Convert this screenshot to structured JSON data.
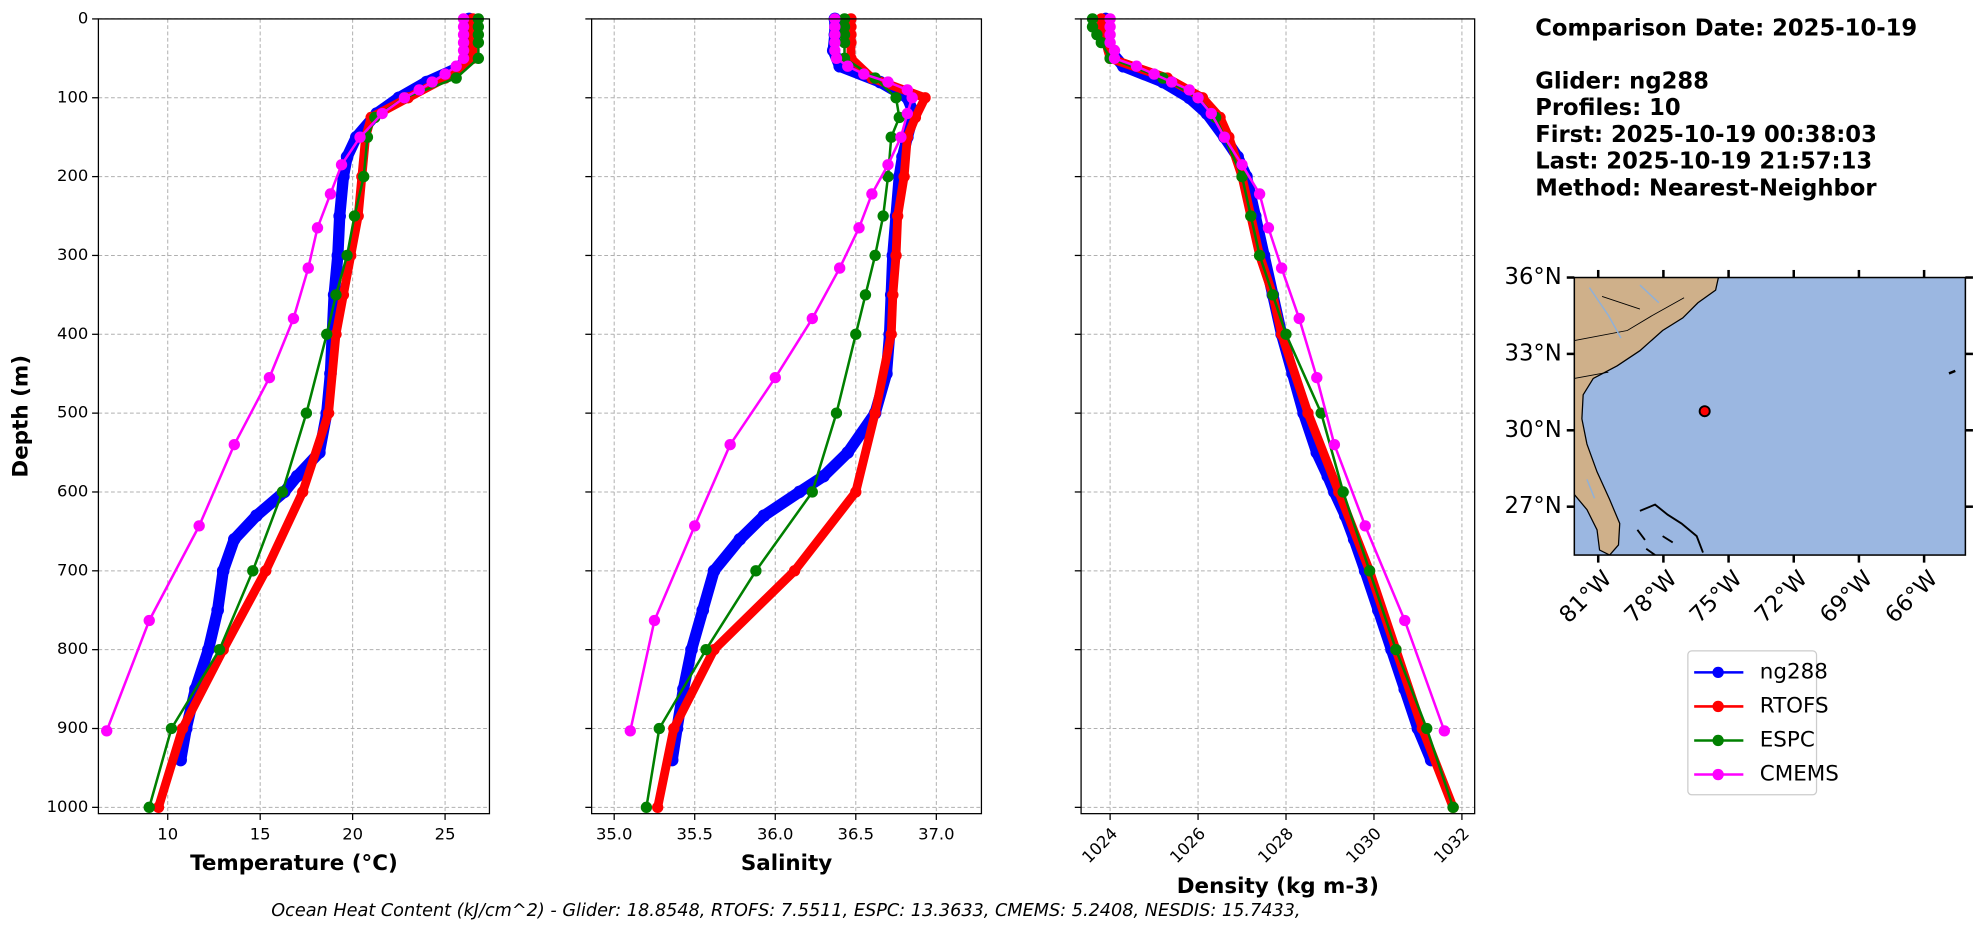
{
  "chart_data": [
    {
      "type": "line",
      "xlabel": "Temperature (°C)",
      "ylabel": "Depth (m)",
      "xlim": [
        6.25,
        27.4
      ],
      "xticks": [
        10,
        15,
        20,
        25
      ],
      "ylim": [
        1008,
        0
      ],
      "yticks": [
        0,
        100,
        200,
        300,
        400,
        500,
        600,
        700,
        800,
        900,
        1000
      ],
      "grid": true,
      "series": [
        {
          "name": "ng288",
          "color": "#0000ff",
          "depth": [
            0,
            20,
            40,
            60,
            80,
            100,
            120,
            150,
            175,
            200,
            250,
            300,
            350,
            400,
            450,
            500,
            550,
            580,
            600,
            630,
            660,
            700,
            750,
            800,
            850,
            900,
            940
          ],
          "values": [
            26.3,
            26.3,
            26.2,
            25.9,
            24.0,
            22.5,
            21.3,
            20.2,
            19.7,
            19.5,
            19.3,
            19.2,
            19.0,
            18.9,
            18.8,
            18.6,
            18.2,
            17.0,
            16.3,
            14.8,
            13.6,
            13.0,
            12.7,
            12.2,
            11.5,
            11.0,
            10.7
          ]
        },
        {
          "name": "RTOFS",
          "color": "#ff0000",
          "depth": [
            0,
            10,
            20,
            30,
            50,
            75,
            100,
            125,
            150,
            200,
            250,
            300,
            350,
            400,
            500,
            600,
            700,
            800,
            900,
            1000
          ],
          "values": [
            26.5,
            26.5,
            26.5,
            26.5,
            26.5,
            25.0,
            23.0,
            21.0,
            20.7,
            20.5,
            20.3,
            19.9,
            19.5,
            19.1,
            18.7,
            17.3,
            15.3,
            13.0,
            10.8,
            9.5
          ]
        },
        {
          "name": "ESPC",
          "color": "#008000",
          "depth": [
            0,
            10,
            20,
            30,
            50,
            75,
            100,
            125,
            150,
            200,
            250,
            300,
            350,
            400,
            500,
            600,
            700,
            800,
            900,
            1000
          ],
          "values": [
            26.8,
            26.8,
            26.8,
            26.8,
            26.8,
            25.6,
            22.8,
            21.2,
            20.8,
            20.6,
            20.1,
            19.7,
            19.1,
            18.6,
            17.5,
            16.2,
            14.6,
            12.8,
            10.2,
            9.0
          ]
        },
        {
          "name": "CMEMS",
          "color": "#ff00ff",
          "depth": [
            0,
            10,
            20,
            30,
            40,
            50,
            60,
            70,
            80,
            90,
            100,
            120,
            150,
            185,
            222,
            265,
            316,
            380,
            455,
            540,
            643,
            763,
            903
          ],
          "values": [
            26.0,
            26.0,
            26.0,
            26.0,
            26.0,
            26.0,
            25.6,
            25.0,
            24.3,
            23.6,
            22.8,
            21.6,
            20.4,
            19.4,
            18.8,
            18.1,
            17.6,
            16.8,
            15.5,
            13.6,
            11.7,
            9.0,
            6.7
          ]
        }
      ]
    },
    {
      "type": "line",
      "xlabel": "Salinity",
      "xlim": [
        34.86,
        37.28
      ],
      "xticks": [
        {
          "value": 35,
          "label": "35.0"
        },
        35.5,
        {
          "value": 36,
          "label": "36.0"
        },
        36.5,
        {
          "value": 37,
          "label": "37.0"
        }
      ],
      "grid": true,
      "series": [
        {
          "color": "#0000ff",
          "depth": [
            0,
            20,
            40,
            60,
            80,
            100,
            120,
            150,
            175,
            200,
            250,
            300,
            350,
            400,
            450,
            500,
            550,
            580,
            600,
            630,
            660,
            700,
            750,
            800,
            850,
            900,
            940
          ],
          "values": [
            36.37,
            36.37,
            36.36,
            36.4,
            36.65,
            36.82,
            36.86,
            36.82,
            36.79,
            36.77,
            36.75,
            36.73,
            36.72,
            36.71,
            36.69,
            36.62,
            36.45,
            36.3,
            36.15,
            35.93,
            35.78,
            35.62,
            35.55,
            35.48,
            35.43,
            35.39,
            35.36
          ]
        },
        {
          "color": "#ff0000",
          "depth": [
            0,
            10,
            20,
            30,
            50,
            75,
            100,
            125,
            150,
            200,
            250,
            300,
            350,
            400,
            500,
            600,
            700,
            800,
            900,
            1000
          ],
          "values": [
            36.47,
            36.47,
            36.47,
            36.47,
            36.47,
            36.6,
            36.93,
            36.87,
            36.82,
            36.8,
            36.76,
            36.75,
            36.73,
            36.72,
            36.62,
            36.5,
            36.12,
            35.62,
            35.37,
            35.27
          ]
        },
        {
          "color": "#008000",
          "depth": [
            0,
            10,
            20,
            30,
            50,
            75,
            100,
            125,
            150,
            200,
            250,
            300,
            350,
            400,
            500,
            600,
            700,
            800,
            900,
            1000
          ],
          "values": [
            36.43,
            36.43,
            36.43,
            36.43,
            36.43,
            36.62,
            36.75,
            36.77,
            36.72,
            36.7,
            36.67,
            36.62,
            36.56,
            36.5,
            36.38,
            36.23,
            35.88,
            35.57,
            35.28,
            35.2
          ]
        },
        {
          "color": "#ff00ff",
          "depth": [
            0,
            10,
            20,
            30,
            40,
            50,
            60,
            70,
            80,
            90,
            100,
            120,
            150,
            185,
            222,
            265,
            316,
            380,
            455,
            540,
            643,
            763,
            903
          ],
          "values": [
            36.37,
            36.37,
            36.37,
            36.37,
            36.37,
            36.38,
            36.45,
            36.55,
            36.7,
            36.82,
            36.85,
            36.82,
            36.78,
            36.7,
            36.6,
            36.52,
            36.4,
            36.23,
            36.0,
            35.72,
            35.5,
            35.25,
            35.1
          ]
        }
      ]
    },
    {
      "type": "line",
      "xlabel": "Density (kg m-3)",
      "xlim": [
        1023.34,
        1032.29
      ],
      "xticks": [
        1024,
        1026,
        1028,
        1030,
        1032
      ],
      "grid": true,
      "series": [
        {
          "color": "#0000ff",
          "depth": [
            0,
            20,
            40,
            60,
            80,
            100,
            120,
            150,
            175,
            200,
            250,
            300,
            350,
            400,
            450,
            500,
            550,
            580,
            600,
            630,
            660,
            700,
            750,
            800,
            850,
            900,
            940
          ],
          "values": [
            1023.9,
            1023.9,
            1024.0,
            1024.3,
            1025.2,
            1025.8,
            1026.2,
            1026.6,
            1026.9,
            1027.1,
            1027.3,
            1027.5,
            1027.7,
            1027.9,
            1028.15,
            1028.4,
            1028.7,
            1028.95,
            1029.1,
            1029.35,
            1029.55,
            1029.8,
            1030.1,
            1030.4,
            1030.7,
            1031.0,
            1031.3
          ]
        },
        {
          "color": "#ff0000",
          "depth": [
            0,
            10,
            20,
            30,
            50,
            75,
            100,
            125,
            150,
            200,
            250,
            300,
            350,
            400,
            500,
            600,
            700,
            800,
            900,
            1000
          ],
          "values": [
            1023.8,
            1023.8,
            1023.8,
            1023.9,
            1024.0,
            1025.3,
            1026.1,
            1026.5,
            1026.7,
            1027.0,
            1027.2,
            1027.4,
            1027.7,
            1027.9,
            1028.5,
            1029.2,
            1029.9,
            1030.5,
            1031.1,
            1031.8
          ]
        },
        {
          "color": "#008000",
          "depth": [
            0,
            10,
            20,
            30,
            50,
            75,
            100,
            125,
            150,
            200,
            250,
            300,
            350,
            400,
            500,
            600,
            700,
            800,
            900,
            1000
          ],
          "values": [
            1023.6,
            1023.6,
            1023.7,
            1023.8,
            1024.0,
            1025.2,
            1026.0,
            1026.4,
            1026.6,
            1027.0,
            1027.2,
            1027.4,
            1027.7,
            1028.0,
            1028.8,
            1029.3,
            1029.9,
            1030.5,
            1031.2,
            1031.8
          ]
        },
        {
          "color": "#ff00ff",
          "depth": [
            0,
            10,
            20,
            30,
            40,
            50,
            60,
            70,
            80,
            90,
            100,
            120,
            150,
            185,
            222,
            265,
            316,
            380,
            455,
            540,
            643,
            763,
            903
          ],
          "values": [
            1024.0,
            1024.0,
            1024.0,
            1024.0,
            1024.1,
            1024.1,
            1024.6,
            1025.0,
            1025.4,
            1025.8,
            1026.0,
            1026.3,
            1026.6,
            1027.0,
            1027.4,
            1027.6,
            1027.9,
            1028.3,
            1028.7,
            1029.1,
            1029.8,
            1030.7,
            1031.6
          ]
        }
      ]
    }
  ],
  "info": {
    "title": "Comparison Date: 2025-10-19",
    "lines": [
      "Glider: ng288",
      "Profiles: 10",
      "First: 2025-10-19 00:38:03",
      "Last: 2025-10-19 21:57:13",
      "Method: Nearest-Neighbor"
    ]
  },
  "map": {
    "xlim": [
      -82.1,
      -64.1
    ],
    "ylim": [
      25.1,
      36
    ],
    "xticks": [
      {
        "value": -81,
        "label": "81°W"
      },
      {
        "value": -78,
        "label": "78°W"
      },
      {
        "value": -75,
        "label": "75°W"
      },
      {
        "value": -72,
        "label": "72°W"
      },
      {
        "value": -69,
        "label": "69°W"
      },
      {
        "value": -66,
        "label": "66°W"
      }
    ],
    "yticks": [
      {
        "value": 36,
        "label": "36°N"
      },
      {
        "value": 33,
        "label": "33°N"
      },
      {
        "value": 30,
        "label": "30°N"
      },
      {
        "value": 27,
        "label": "27°N"
      }
    ],
    "glider": {
      "lon": -76.1,
      "lat": 30.75
    }
  },
  "footer": "Ocean Heat Content (kJ/cm^2) - Glider: 18.8548,  RTOFS: 7.5511,  ESPC: 13.3633,  CMEMS: 5.2408,  NESDIS: 15.7433,"
}
